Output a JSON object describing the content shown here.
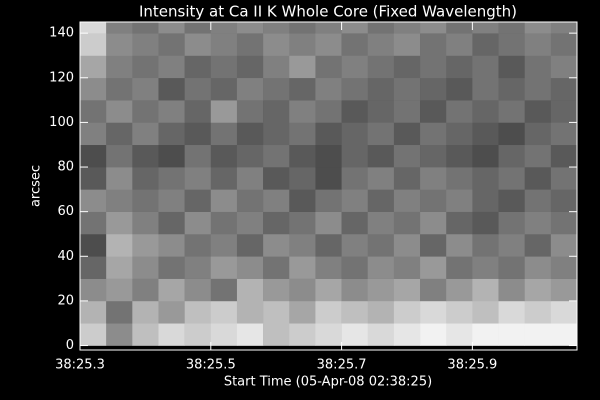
{
  "chart_data": {
    "type": "heatmap",
    "title": "Intensity at Ca II K Whole Core (Fixed Wavelength)",
    "x_label": "Start Time (05-Apr-08 02:38:25)",
    "y_label": "arcsec",
    "x": [
      25.3,
      25.34,
      25.38,
      25.42,
      25.46,
      25.5,
      25.54,
      25.58,
      25.62,
      25.66,
      25.7,
      25.74,
      25.78,
      25.82,
      25.86,
      25.9,
      25.94,
      25.98,
      26.02
    ],
    "y": [
      0,
      10,
      20,
      30,
      40,
      50,
      60,
      70,
      80,
      90,
      100,
      110,
      120,
      130,
      140
    ],
    "z": [
      [
        0.8,
        0.55,
        0.75,
        0.85,
        0.8,
        0.85,
        0.9,
        0.75,
        0.8,
        0.85,
        0.9,
        0.85,
        0.9,
        0.95,
        0.9,
        0.95,
        0.95,
        0.95,
        0.95
      ],
      [
        0.7,
        0.45,
        0.7,
        0.6,
        0.75,
        0.8,
        0.7,
        0.75,
        0.65,
        0.8,
        0.75,
        0.7,
        0.8,
        0.85,
        0.8,
        0.75,
        0.85,
        0.8,
        0.85
      ],
      [
        0.55,
        0.6,
        0.5,
        0.65,
        0.55,
        0.45,
        0.7,
        0.6,
        0.55,
        0.65,
        0.55,
        0.6,
        0.65,
        0.5,
        0.6,
        0.7,
        0.55,
        0.65,
        0.6
      ],
      [
        0.4,
        0.65,
        0.55,
        0.45,
        0.5,
        0.6,
        0.55,
        0.45,
        0.6,
        0.5,
        0.45,
        0.55,
        0.5,
        0.6,
        0.45,
        0.5,
        0.45,
        0.55,
        0.5
      ],
      [
        0.3,
        0.7,
        0.6,
        0.55,
        0.45,
        0.5,
        0.4,
        0.55,
        0.5,
        0.4,
        0.5,
        0.45,
        0.55,
        0.4,
        0.55,
        0.45,
        0.5,
        0.4,
        0.55
      ],
      [
        0.45,
        0.6,
        0.5,
        0.4,
        0.55,
        0.45,
        0.5,
        0.4,
        0.45,
        0.55,
        0.4,
        0.5,
        0.45,
        0.55,
        0.4,
        0.35,
        0.45,
        0.5,
        0.45
      ],
      [
        0.55,
        0.5,
        0.45,
        0.5,
        0.4,
        0.55,
        0.45,
        0.5,
        0.35,
        0.45,
        0.5,
        0.4,
        0.5,
        0.45,
        0.5,
        0.4,
        0.35,
        0.45,
        0.4
      ],
      [
        0.35,
        0.55,
        0.4,
        0.45,
        0.5,
        0.4,
        0.5,
        0.35,
        0.4,
        0.3,
        0.45,
        0.5,
        0.4,
        0.5,
        0.45,
        0.4,
        0.45,
        0.35,
        0.45
      ],
      [
        0.3,
        0.45,
        0.35,
        0.3,
        0.45,
        0.35,
        0.4,
        0.45,
        0.35,
        0.3,
        0.4,
        0.35,
        0.45,
        0.4,
        0.35,
        0.3,
        0.4,
        0.45,
        0.35
      ],
      [
        0.5,
        0.4,
        0.5,
        0.4,
        0.35,
        0.45,
        0.35,
        0.4,
        0.45,
        0.35,
        0.4,
        0.45,
        0.35,
        0.45,
        0.4,
        0.35,
        0.3,
        0.4,
        0.45
      ],
      [
        0.45,
        0.55,
        0.45,
        0.5,
        0.4,
        0.6,
        0.45,
        0.4,
        0.5,
        0.45,
        0.35,
        0.4,
        0.45,
        0.35,
        0.45,
        0.4,
        0.45,
        0.35,
        0.4
      ],
      [
        0.55,
        0.45,
        0.5,
        0.35,
        0.45,
        0.4,
        0.5,
        0.45,
        0.4,
        0.5,
        0.45,
        0.4,
        0.45,
        0.4,
        0.35,
        0.45,
        0.4,
        0.45,
        0.4
      ],
      [
        0.65,
        0.5,
        0.45,
        0.5,
        0.4,
        0.45,
        0.4,
        0.5,
        0.6,
        0.45,
        0.5,
        0.45,
        0.4,
        0.45,
        0.4,
        0.45,
        0.35,
        0.45,
        0.5
      ],
      [
        0.8,
        0.55,
        0.5,
        0.45,
        0.55,
        0.5,
        0.45,
        0.55,
        0.5,
        0.55,
        0.45,
        0.5,
        0.55,
        0.45,
        0.5,
        0.4,
        0.45,
        0.5,
        0.45
      ],
      [
        0.85,
        0.5,
        0.45,
        0.55,
        0.45,
        0.5,
        0.55,
        0.5,
        0.45,
        0.5,
        0.55,
        0.45,
        0.5,
        0.55,
        0.45,
        0.5,
        0.45,
        0.55,
        0.5
      ]
    ],
    "xlim": [
      25.3,
      26.06
    ],
    "ylim": [
      -2,
      145
    ],
    "xticks": [
      {
        "value": 25.3,
        "label": "38:25.3"
      },
      {
        "value": 25.5,
        "label": "38:25.5"
      },
      {
        "value": 25.7,
        "label": "38:25.7"
      },
      {
        "value": 25.9,
        "label": "38:25.9"
      }
    ],
    "yticks": [
      0,
      20,
      40,
      60,
      80,
      100,
      120,
      140
    ]
  }
}
